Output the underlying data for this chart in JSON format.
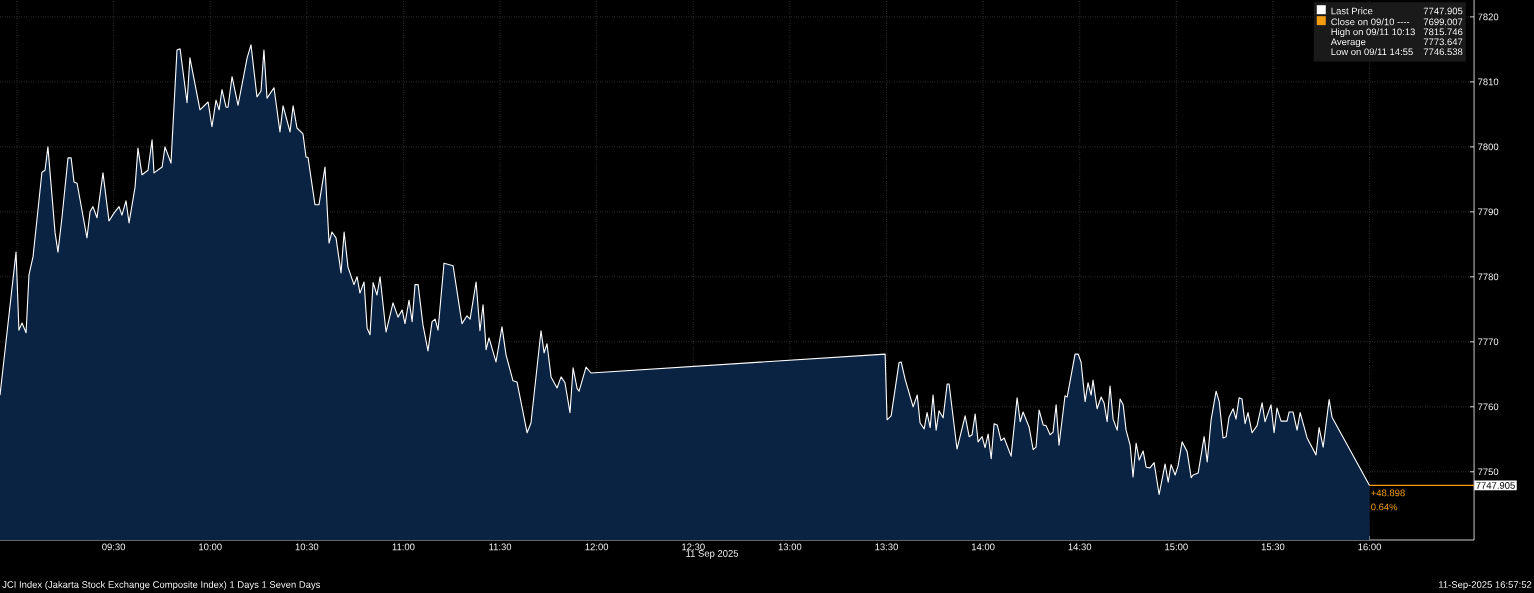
{
  "chart_data": {
    "type": "area",
    "xlabel": "11 Sep 2025",
    "x": [
      8.912,
      8.995,
      9.01,
      9.026,
      9.047,
      9.062,
      9.083,
      9.129,
      9.145,
      9.16,
      9.197,
      9.212,
      9.233,
      9.264,
      9.28,
      9.295,
      9.311,
      9.362,
      9.378,
      9.393,
      9.414,
      9.445,
      9.476,
      9.502,
      9.528,
      9.543,
      9.564,
      9.58,
      9.611,
      9.626,
      9.647,
      9.678,
      9.699,
      9.709,
      9.751,
      9.766,
      9.797,
      9.828,
      9.844,
      9.88,
      9.895,
      9.947,
      9.989,
      10.009,
      10.03,
      10.046,
      10.061,
      10.082,
      10.092,
      10.113,
      10.144,
      10.191,
      10.211,
      10.242,
      10.263,
      10.278,
      10.294,
      10.33,
      10.361,
      10.377,
      10.413,
      10.429,
      10.449,
      10.48,
      10.496,
      10.506,
      10.542,
      10.563,
      10.594,
      10.615,
      10.63,
      10.651,
      10.677,
      10.693,
      10.713,
      10.744,
      10.76,
      10.775,
      10.796,
      10.812,
      10.827,
      10.843,
      10.863,
      10.879,
      10.91,
      10.946,
      10.972,
      10.993,
      11.008,
      11.029,
      11.045,
      11.06,
      11.076,
      11.101,
      11.127,
      11.148,
      11.164,
      11.179,
      11.21,
      11.257,
      11.303,
      11.329,
      11.345,
      11.376,
      11.396,
      11.412,
      11.428,
      11.443,
      11.479,
      11.51,
      11.531,
      11.567,
      11.588,
      11.64,
      11.66,
      11.712,
      11.728,
      11.743,
      11.764,
      11.795,
      11.816,
      11.836,
      11.862,
      11.878,
      11.899,
      11.909,
      11.945,
      11.971,
      13.493,
      13.503,
      13.524,
      13.565,
      13.576,
      13.596,
      13.638,
      13.659,
      13.674,
      13.695,
      13.71,
      13.726,
      13.741,
      13.757,
      13.772,
      13.793,
      13.814,
      13.824,
      13.865,
      13.907,
      13.928,
      13.943,
      13.959,
      13.974,
      13.995,
      14.01,
      14.026,
      14.042,
      14.057,
      14.073,
      14.093,
      14.109,
      14.145,
      14.176,
      14.192,
      14.207,
      14.238,
      14.259,
      14.274,
      14.29,
      14.311,
      14.326,
      14.347,
      14.362,
      14.378,
      14.393,
      14.424,
      14.435,
      14.476,
      14.492,
      14.507,
      14.528,
      14.543,
      14.559,
      14.569,
      14.59,
      14.611,
      14.626,
      14.642,
      14.657,
      14.673,
      14.694,
      14.709,
      14.725,
      14.74,
      14.761,
      14.776,
      14.792,
      14.808,
      14.828,
      14.844,
      14.864,
      14.885,
      14.911,
      14.942,
      14.958,
      14.973,
      14.994,
      15.009,
      15.03,
      15.056,
      15.077,
      15.087,
      15.113,
      15.144,
      15.16,
      15.18,
      15.206,
      15.222,
      15.242,
      15.258,
      15.273,
      15.294,
      15.309,
      15.325,
      15.34,
      15.356,
      15.371,
      15.392,
      15.418,
      15.444,
      15.459,
      15.49,
      15.506,
      15.521,
      15.542,
      15.573,
      15.584,
      15.604,
      15.625,
      15.641,
      15.677,
      15.723,
      15.739,
      15.76,
      15.791,
      15.806,
      16.0
    ],
    "series": [
      {
        "name": "Last Price",
        "color": "#ffffff",
        "values": [
          7761.8,
          7783.8,
          7771.8,
          7772.9,
          7771.4,
          7780.3,
          7783.1,
          7796.1,
          7796.4,
          7800.0,
          7786.8,
          7783.8,
          7789.2,
          7798.3,
          7798.3,
          7794.6,
          7794.4,
          7786.0,
          7790.0,
          7790.8,
          7789.1,
          7796.0,
          7788.6,
          7789.8,
          7790.8,
          7789.5,
          7791.7,
          7788.3,
          7793.8,
          7799.8,
          7795.7,
          7796.4,
          7801.1,
          7796.0,
          7796.9,
          7800.0,
          7797.5,
          7814.9,
          7815.1,
          7806.8,
          7813.7,
          7805.7,
          7806.9,
          7803.1,
          7807.2,
          7805.7,
          7808.8,
          7806.1,
          7806.1,
          7810.8,
          7806.4,
          7813.7,
          7815.7,
          7807.7,
          7808.6,
          7814.9,
          7807.5,
          7809.1,
          7802.3,
          7806.3,
          7802.3,
          7806.3,
          7802.9,
          7802.0,
          7798.4,
          7798.4,
          7791.1,
          7791.1,
          7796.9,
          7785.2,
          7786.9,
          7786.0,
          7780.6,
          7786.9,
          7781.5,
          7778.8,
          7780.0,
          7777.5,
          7779.2,
          7772.1,
          7771.1,
          7779.1,
          7777.2,
          7780.0,
          7771.5,
          7776.0,
          7773.8,
          7774.9,
          7772.8,
          7776.4,
          7773.1,
          7778.8,
          7778.8,
          7772.6,
          7768.6,
          7773.1,
          7773.5,
          7771.8,
          7782.1,
          7781.7,
          7772.8,
          7774.0,
          7773.5,
          7779.2,
          7771.7,
          7775.7,
          7768.8,
          7770.6,
          7766.9,
          7772.3,
          7768.0,
          7764.0,
          7763.8,
          7756.0,
          7757.5,
          7771.7,
          7768.3,
          7769.7,
          7764.6,
          7762.9,
          7764.6,
          7763.7,
          7759.1,
          7766.0,
          7762.8,
          7762.4,
          7766.1,
          7765.2,
          7768.1,
          7758.0,
          7758.6,
          7766.8,
          7766.9,
          7764.3,
          7760.0,
          7761.8,
          7757.5,
          7756.6,
          7759.1,
          7756.8,
          7761.8,
          7756.4,
          7759.4,
          7758.3,
          7763.5,
          7763.5,
          7753.5,
          7758.6,
          7755.4,
          7755.7,
          7758.9,
          7754.6,
          7755.4,
          7753.7,
          7755.8,
          7752.0,
          7757.4,
          7757.2,
          7754.8,
          7755.2,
          7752.4,
          7761.4,
          7757.7,
          7759.2,
          7756.9,
          7753.4,
          7753.8,
          7759.5,
          7757.2,
          7757.1,
          7755.7,
          7756.1,
          7760.3,
          7754.1,
          7761.7,
          7761.5,
          7768.1,
          7768.1,
          7766.9,
          7760.8,
          7763.7,
          7761.8,
          7764.1,
          7759.7,
          7761.5,
          7760.6,
          7757.7,
          7763.2,
          7758.1,
          7756.4,
          7761.2,
          7760.3,
          7756.4,
          7754.1,
          7749.2,
          7754.4,
          7751.8,
          7753.2,
          7750.7,
          7750.6,
          7751.4,
          7746.5,
          7751.2,
          7748.4,
          7751.1,
          7749.5,
          7750.9,
          7754.6,
          7753.1,
          7749.1,
          7749.5,
          7749.8,
          7755.4,
          7751.5,
          7758.0,
          7762.4,
          7760.8,
          7755.2,
          7755.4,
          7758.4,
          7759.7,
          7758.1,
          7761.4,
          7761.2,
          7757.4,
          7759.1,
          7756.0,
          7757.1,
          7760.6,
          7757.7,
          7760.3,
          7756.0,
          7759.8,
          7757.8,
          7757.8,
          7759.2,
          7759.2,
          7756.4,
          7759.1,
          7755.2,
          7752.6,
          7756.8,
          7753.8,
          7761.1,
          7758.4,
          7747.9
        ]
      },
      {
        "type": "line",
        "color": "#f39c12",
        "x": [
          16.0,
          16.541
        ],
        "values": [
          7747.905,
          7747.905
        ]
      }
    ],
    "xlim": [
      8.912,
      16.541
    ],
    "ylim": [
      7739.5,
      7822.6
    ],
    "xticks": [
      {
        "value": 9,
        "label": null
      },
      {
        "value": 9.5,
        "label": "09:30"
      },
      {
        "value": 10,
        "label": "10:00"
      },
      {
        "value": 10.5,
        "label": "10:30"
      },
      {
        "value": 11,
        "label": "11:00"
      },
      {
        "value": 11.5,
        "label": "11:30"
      },
      {
        "value": 12,
        "label": "12:00"
      },
      {
        "value": 12.5,
        "label": "12:30"
      },
      {
        "value": 13,
        "label": "13:00"
      },
      {
        "value": 13.5,
        "label": "13:30"
      },
      {
        "value": 14,
        "label": "14:00"
      },
      {
        "value": 14.5,
        "label": "14:30"
      },
      {
        "value": 15,
        "label": "15:00"
      },
      {
        "value": 15.5,
        "label": "15:30"
      },
      {
        "value": 16,
        "label": "16:00"
      }
    ],
    "yticks": [
      7750,
      7760,
      7770,
      7780,
      7790,
      7800,
      7810,
      7820
    ],
    "grid": true,
    "legend": "top right",
    "annotations": [
      "7747.905",
      "Close on 09/10 ----",
      "7699.007",
      "High on 09/11 10:13",
      "7815.746",
      "Average",
      "7773.647",
      "Low on 09/11 14:55",
      "7746.538",
      {
        "text": "7747.905",
        "x": 16.541,
        "y": 7747.905
      },
      "+48.898",
      "0.64%",
      "JCI Index (Jakarta Stock Exchange Composite Index) 1 Days 1 Seven Days",
      "11-Sep-2025 16:57:52"
    ]
  }
}
